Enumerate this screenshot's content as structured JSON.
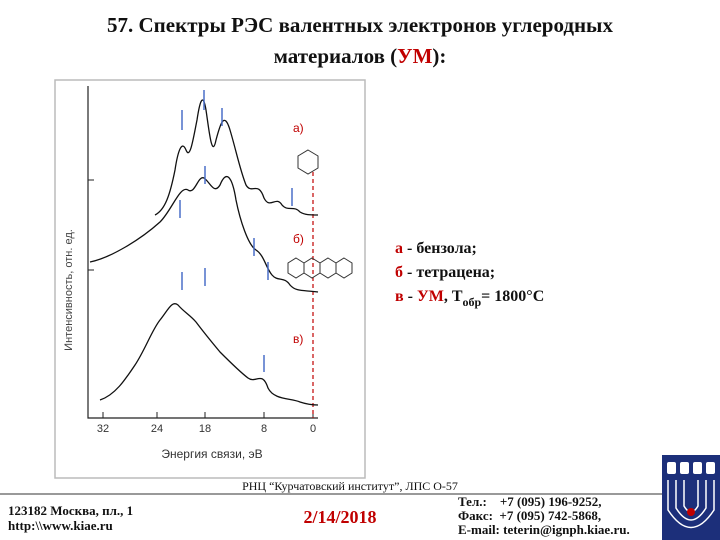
{
  "title": {
    "line1": "57. Спектры РЭС валентных электронов углеродных",
    "line2_start": "материалов (",
    "line2_highlight": "УМ",
    "line2_end": "):"
  },
  "figure": {
    "panel_labels": [
      "а)",
      "б)",
      "в)"
    ],
    "x_tick_labels": [
      "32",
      "24",
      "18",
      "8",
      "0"
    ],
    "x_axis_label": "Энергия связи, эВ",
    "y_axis_label": "Интенсивность, отн. ед."
  },
  "legend": [
    {
      "marker": "а",
      "text": " - бензола;"
    },
    {
      "marker": "б",
      "text": " - тетрацена;"
    },
    {
      "marker": "в",
      "text": " - ",
      "highlight": "УМ",
      "text2": ", T",
      "subscript": "обр",
      "text3": "= 1800°C"
    }
  ],
  "footer": {
    "institute": "РНЦ “Курчатовский институт”, ЛПС О-57",
    "address": [
      "123182 Москва, пл., 1",
      "http:\\\\www.kiae.ru"
    ],
    "date": "2/14/2018",
    "contacts": [
      "Тел.:    +7 (095) 196-9252,",
      "Факс:  +7 (095) 742-5868,",
      "E-mail: teterin@ignph.kiae.ru."
    ]
  }
}
